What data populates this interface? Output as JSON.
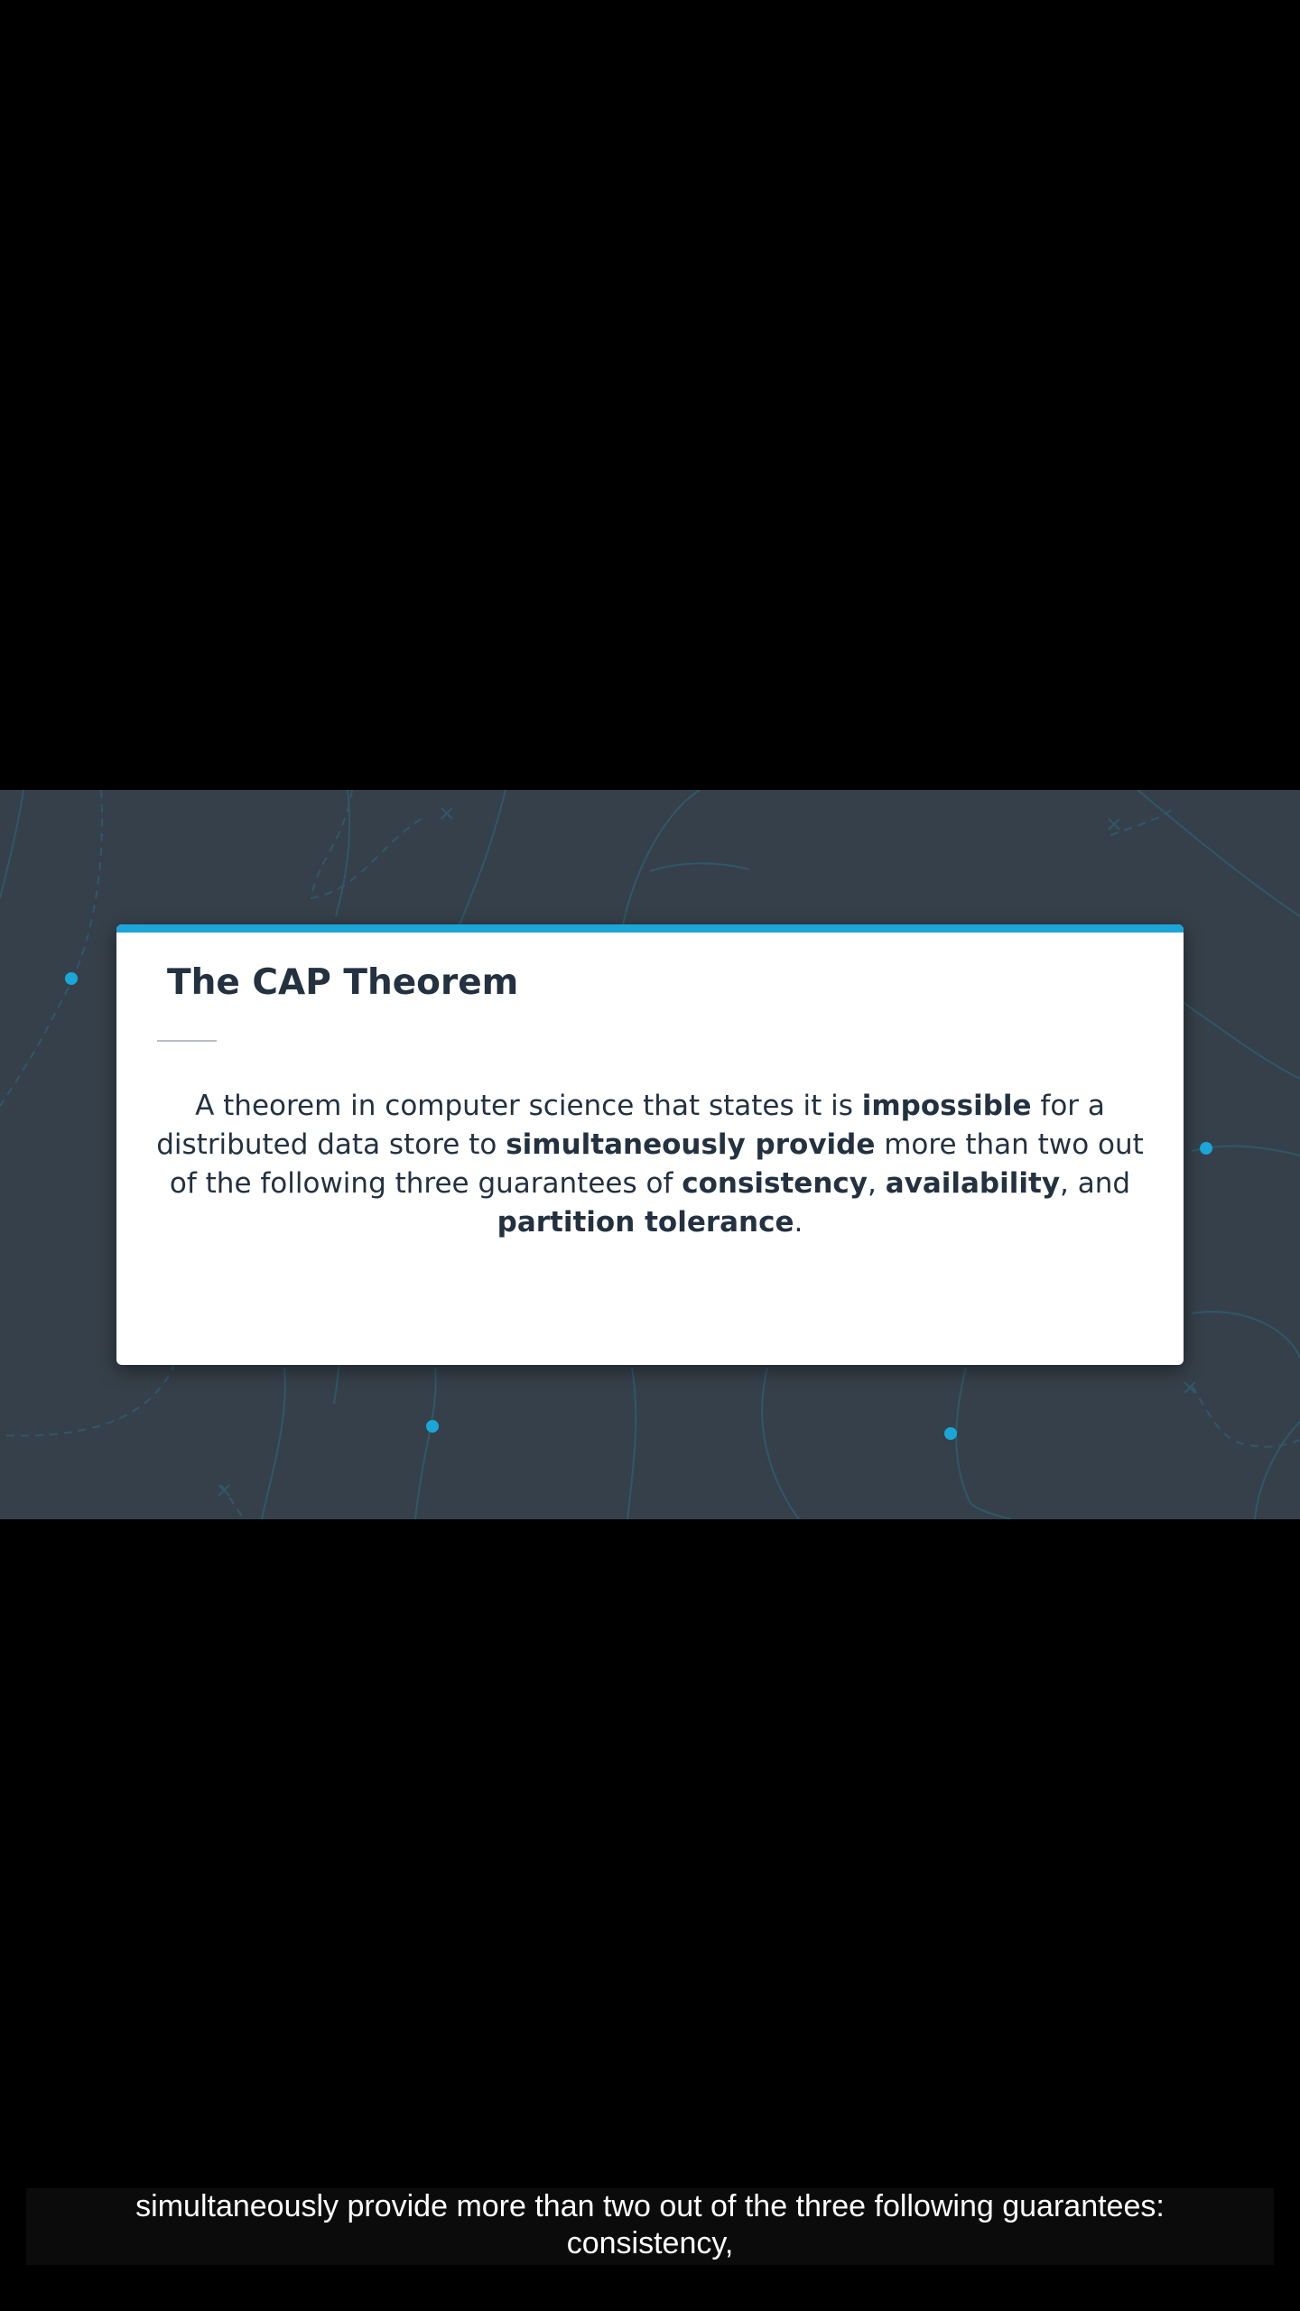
{
  "slide": {
    "title": "The CAP Theorem",
    "body_parts": {
      "p1": "A theorem in computer science that states it is ",
      "b1": "impossible",
      "p2": " for a distributed data store to ",
      "b2": "simultaneously provide",
      "p3": " more than two out of the following three guarantees of ",
      "b3": "consistency",
      "p4": ", ",
      "b4": "availability",
      "p5": ", and ",
      "b5": "partition tolerance",
      "p6": "."
    }
  },
  "caption": {
    "line1": "simultaneously provide more than two out of the three following guarantees:",
    "line2": "consistency,"
  },
  "colors": {
    "frame_background": "#36404a",
    "accent": "#1aa6d9",
    "card_background": "#ffffff",
    "text_dark": "#233140",
    "caption_background": "#0b0b0b",
    "caption_text": "#ffffff",
    "letterbox": "#000000"
  }
}
